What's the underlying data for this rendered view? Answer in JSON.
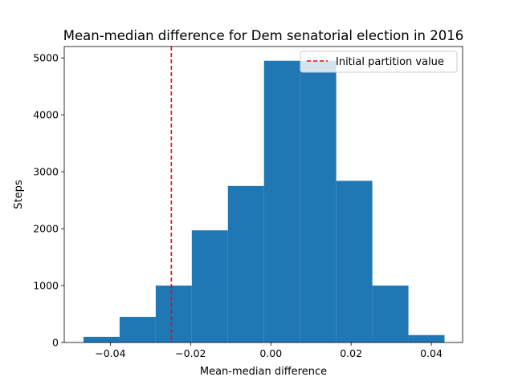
{
  "chart_data": {
    "type": "bar",
    "title": "Mean-median difference for Dem senatorial election in 2016",
    "xlabel": "Mean-median difference",
    "ylabel": "Steps",
    "xlim": [
      -0.0515,
      0.0478
    ],
    "ylim": [
      0,
      5200
    ],
    "xticks": [
      -0.04,
      -0.02,
      0.0,
      0.02,
      0.04
    ],
    "xtick_labels": [
      "−0.04",
      "−0.02",
      "0.00",
      "0.02",
      "0.04"
    ],
    "yticks": [
      0,
      1000,
      2000,
      3000,
      4000,
      5000
    ],
    "ytick_labels": [
      "0",
      "1000",
      "2000",
      "3000",
      "4000",
      "5000"
    ],
    "bins": [
      {
        "x0": -0.0467,
        "x1": -0.0377,
        "count": 100
      },
      {
        "x0": -0.0377,
        "x1": -0.0287,
        "count": 450
      },
      {
        "x0": -0.0287,
        "x1": -0.0197,
        "count": 1000
      },
      {
        "x0": -0.0197,
        "x1": -0.0107,
        "count": 1970
      },
      {
        "x0": -0.0107,
        "x1": -0.0017,
        "count": 2750
      },
      {
        "x0": -0.0017,
        "x1": 0.0073,
        "count": 4950
      },
      {
        "x0": 0.0073,
        "x1": 0.0163,
        "count": 4950
      },
      {
        "x0": 0.0163,
        "x1": 0.0253,
        "count": 2840
      },
      {
        "x0": 0.0253,
        "x1": 0.0343,
        "count": 1000
      },
      {
        "x0": 0.0343,
        "x1": 0.0433,
        "count": 130
      }
    ],
    "reference_line": {
      "x": -0.0248,
      "label": "Initial partition value",
      "style": "dashed"
    },
    "legend_position": "upper right",
    "bar_color": "#1f77b4",
    "line_color": "#ff0000",
    "grid": false
  }
}
